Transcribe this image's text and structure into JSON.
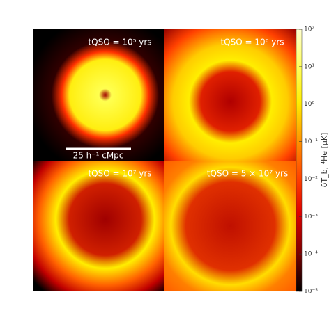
{
  "chart_data": {
    "type": "image-grid",
    "panels": [
      {
        "title": "tQSO = 10⁵ yrs"
      },
      {
        "title": "tQSO = 10⁶ yrs"
      },
      {
        "title": "tQSO = 10⁷ yrs"
      },
      {
        "title": "tQSO = 5 × 10⁷ yrs"
      }
    ],
    "scale_bar": "25 h⁻¹ cMpc",
    "colorbar": {
      "label": "δT_b, ⁴He [μK]",
      "log_scale": true,
      "ylim": [
        1e-05,
        100
      ],
      "yticks": [
        {
          "value": 1e-05,
          "label": "10⁻⁵"
        },
        {
          "value": 0.0001,
          "label": "10⁻⁴"
        },
        {
          "value": 0.001,
          "label": "10⁻³"
        },
        {
          "value": 0.01,
          "label": "10⁻²"
        },
        {
          "value": 0.1,
          "label": "10⁻¹"
        },
        {
          "value": 1,
          "label": "10⁰"
        },
        {
          "value": 10,
          "label": "10¹"
        },
        {
          "value": 100,
          "label": "10²"
        }
      ]
    }
  }
}
